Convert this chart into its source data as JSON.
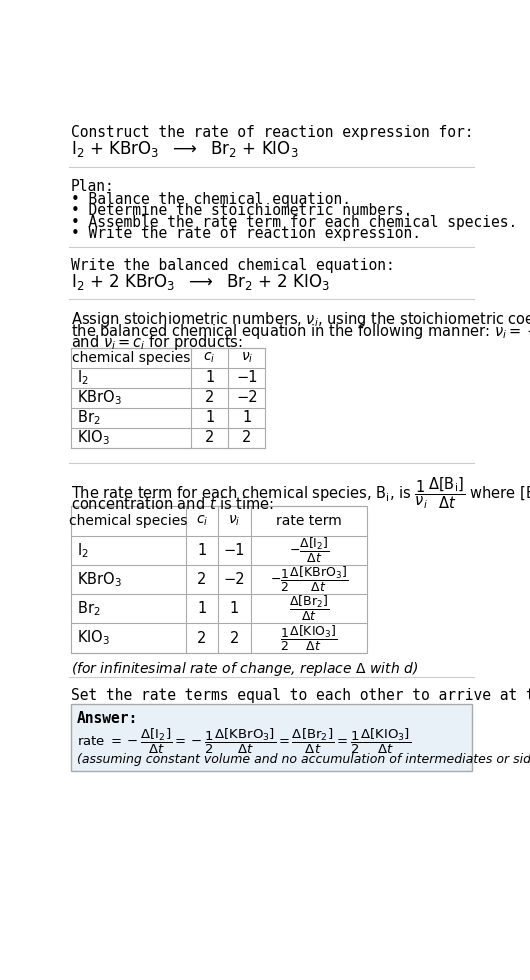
{
  "bg_color": "#ffffff",
  "text_color": "#000000",
  "title_line": "Construct the rate of reaction expression for:",
  "plan_header": "Plan:",
  "plan_items": [
    "• Balance the chemical equation.",
    "• Determine the stoichiometric numbers.",
    "• Assemble the rate term for each chemical species.",
    "• Write the rate of reaction expression."
  ],
  "balanced_header": "Write the balanced chemical equation:",
  "table1_ci": [
    "1",
    "2",
    "1",
    "2"
  ],
  "table1_nu": [
    "−1",
    "−2",
    "1",
    "2"
  ],
  "table2_ci": [
    "1",
    "2",
    "1",
    "2"
  ],
  "table2_nu": [
    "−1",
    "−2",
    "1",
    "2"
  ],
  "infinitesimal_note": "(for infinitesimal rate of change, replace Δ with d)",
  "set_equal_text": "Set the rate terms equal to each other to arrive at the rate expression:",
  "answer_label": "Answer:",
  "answer_box_color": "#e8f0f8",
  "divider_color": "#cccccc",
  "table_border_color": "#aaaaaa"
}
